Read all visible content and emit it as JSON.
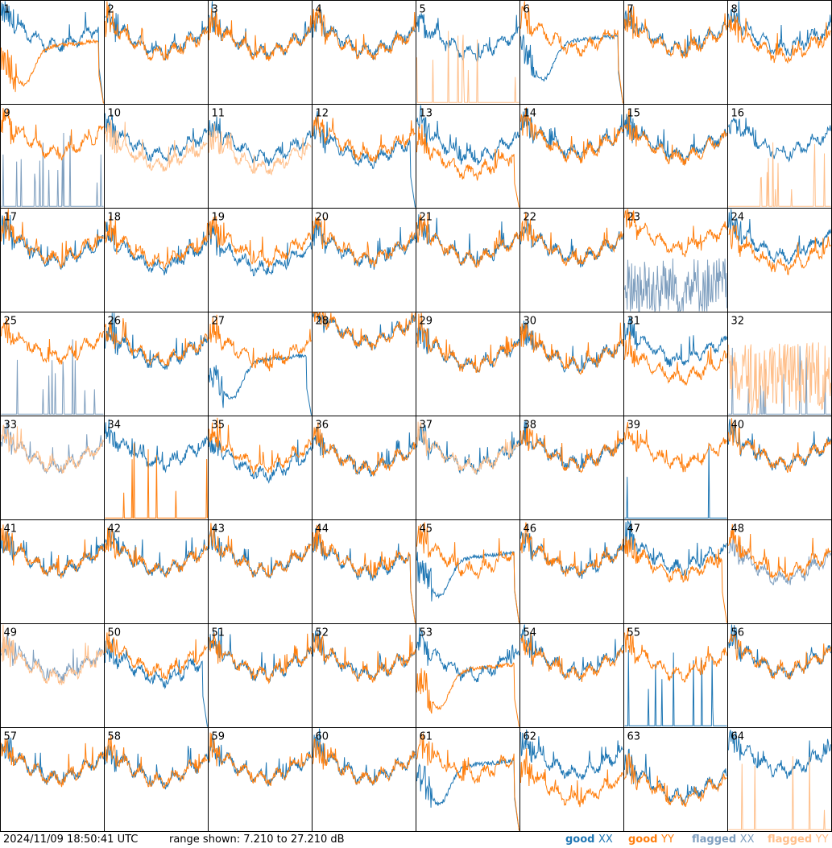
{
  "footer": {
    "timestamp": "2024/11/09 18:50:41 UTC",
    "range_text": "range shown: 7.210 to 27.210 dB"
  },
  "colors": {
    "good_xx": "#1f77b4",
    "good_yy": "#ff7f0e",
    "flagged_xx": "#7f9fbf",
    "flagged_yy": "#ffbf8a",
    "grid": "#000000"
  },
  "chart_data": {
    "type": "line",
    "title": "",
    "ylim": [
      7.21,
      27.21
    ],
    "grid": {
      "rows": 8,
      "cols": 8
    },
    "legend": {
      "placement": "bottom-right",
      "entries": [
        {
          "key": "good_xx",
          "prefix": "good ",
          "suffix": "XX"
        },
        {
          "key": "good_yy",
          "prefix": "good ",
          "suffix": "YY"
        },
        {
          "key": "flagged_xx",
          "prefix": "flagged ",
          "suffix": "XX"
        },
        {
          "key": "flagged_yy",
          "prefix": "flagged ",
          "suffix": "YY"
        }
      ]
    },
    "panels": [
      {
        "id": "1",
        "xx": "good",
        "yy": "good",
        "xx_shape": "ripple",
        "yy_shape": "bowl",
        "xx_level": 20.5,
        "yy_level": 17.5,
        "xx_drop": true,
        "yy_drop": true
      },
      {
        "id": "2",
        "xx": "good",
        "yy": "good",
        "xx_shape": "ripple",
        "yy_shape": "ripple",
        "xx_level": 19.5,
        "yy_level": 19.0
      },
      {
        "id": "3",
        "xx": "good",
        "yy": "good",
        "xx_shape": "ripple",
        "yy_shape": "ripple",
        "xx_level": 19.2,
        "yy_level": 19.0
      },
      {
        "id": "4",
        "xx": "good",
        "yy": "good",
        "xx_shape": "ripple",
        "yy_shape": "ripple",
        "xx_level": 19.5,
        "yy_level": 19.0
      },
      {
        "id": "5",
        "xx": "good",
        "yy": "flagged",
        "xx_shape": "ripple",
        "yy_shape": "spikes",
        "xx_level": 19.0,
        "yy_level": 7.4
      },
      {
        "id": "6",
        "xx": "good",
        "yy": "good",
        "xx_shape": "bowl",
        "yy_shape": "ripple",
        "xx_level": 18.5,
        "yy_level": 20.0,
        "xx_drop": true,
        "yy_drop": true
      },
      {
        "id": "7",
        "xx": "good",
        "yy": "good",
        "xx_shape": "ripple",
        "yy_shape": "ripple",
        "xx_level": 20.0,
        "yy_level": 19.5
      },
      {
        "id": "8",
        "xx": "good",
        "yy": "good",
        "xx_shape": "ripple",
        "yy_shape": "ripple",
        "xx_level": 20.0,
        "yy_level": 18.5
      },
      {
        "id": "9",
        "xx": "flagged",
        "yy": "good",
        "xx_shape": "spikes",
        "yy_shape": "ripple",
        "xx_level": 7.4,
        "yy_level": 20.0
      },
      {
        "id": "10",
        "xx": "good",
        "yy": "flagged",
        "xx_shape": "ripple",
        "yy_shape": "ripple",
        "xx_level": 19.5,
        "yy_level": 17.5
      },
      {
        "id": "11",
        "xx": "good",
        "yy": "flagged",
        "xx_shape": "ripple",
        "yy_shape": "ripple",
        "xx_level": 19.0,
        "yy_level": 17.0
      },
      {
        "id": "12",
        "xx": "good",
        "yy": "good",
        "xx_shape": "ripple",
        "yy_shape": "ripple",
        "xx_level": 18.5,
        "yy_level": 19.5,
        "xx_drop": true
      },
      {
        "id": "13",
        "xx": "good",
        "yy": "good",
        "xx_shape": "ripple",
        "yy_shape": "ripple",
        "xx_level": 19.0,
        "yy_level": 16.0,
        "yy_drop": true
      },
      {
        "id": "14",
        "xx": "good",
        "yy": "good",
        "xx_shape": "ripple",
        "yy_shape": "ripple",
        "xx_level": 20.0,
        "yy_level": 19.5
      },
      {
        "id": "15",
        "xx": "good",
        "yy": "good",
        "xx_shape": "ripple",
        "yy_shape": "ripple",
        "xx_level": 19.5,
        "yy_level": 19.0
      },
      {
        "id": "16",
        "xx": "good",
        "yy": "flagged",
        "xx_shape": "ripple",
        "yy_shape": "spikes",
        "xx_level": 20.0,
        "yy_level": 7.4
      },
      {
        "id": "17",
        "xx": "good",
        "yy": "good",
        "xx_shape": "ripple",
        "yy_shape": "ripple",
        "xx_level": 19.0,
        "yy_level": 19.5
      },
      {
        "id": "18",
        "xx": "good",
        "yy": "good",
        "xx_shape": "ripple",
        "yy_shape": "ripple",
        "xx_level": 18.0,
        "yy_level": 19.0
      },
      {
        "id": "19",
        "xx": "good",
        "yy": "good",
        "xx_shape": "ripple",
        "yy_shape": "ripple",
        "xx_level": 17.5,
        "yy_level": 19.5
      },
      {
        "id": "20",
        "xx": "good",
        "yy": "good",
        "xx_shape": "ripple",
        "yy_shape": "ripple",
        "xx_level": 19.0,
        "yy_level": 19.5
      },
      {
        "id": "21",
        "xx": "good",
        "yy": "good",
        "xx_shape": "ripple",
        "yy_shape": "ripple",
        "xx_level": 19.5,
        "yy_level": 19.5
      },
      {
        "id": "22",
        "xx": "good",
        "yy": "good",
        "xx_shape": "ripple",
        "yy_shape": "ripple",
        "xx_level": 19.5,
        "yy_level": 19.5
      },
      {
        "id": "23",
        "xx": "flagged",
        "yy": "good",
        "xx_shape": "noisy",
        "yy_shape": "ripple",
        "xx_level": 12.0,
        "yy_level": 21.5
      },
      {
        "id": "24",
        "xx": "good",
        "yy": "good",
        "xx_shape": "ripple",
        "yy_shape": "ripple",
        "xx_level": 20.0,
        "yy_level": 18.0
      },
      {
        "id": "25",
        "xx": "flagged",
        "yy": "good",
        "xx_shape": "spikes",
        "yy_shape": "ripple",
        "xx_level": 7.4,
        "yy_level": 20.5
      },
      {
        "id": "26",
        "xx": "good",
        "yy": "good",
        "xx_shape": "ripple",
        "yy_shape": "ripple",
        "xx_level": 19.5,
        "yy_level": 20.0
      },
      {
        "id": "27",
        "xx": "good",
        "yy": "good",
        "xx_shape": "bowl",
        "yy_shape": "ripple",
        "xx_level": 17.0,
        "yy_level": 19.5,
        "xx_drop": true
      },
      {
        "id": "28",
        "xx": "good",
        "yy": "good",
        "xx_shape": "ripple",
        "yy_shape": "ripple",
        "xx_level": 23.5,
        "yy_level": 23.5
      },
      {
        "id": "29",
        "xx": "good",
        "yy": "good",
        "xx_shape": "ripple",
        "yy_shape": "ripple",
        "xx_level": 19.0,
        "yy_level": 19.0
      },
      {
        "id": "30",
        "xx": "good",
        "yy": "good",
        "xx_shape": "ripple",
        "yy_shape": "ripple",
        "xx_level": 19.0,
        "yy_level": 19.0
      },
      {
        "id": "31",
        "xx": "good",
        "yy": "good",
        "xx_shape": "ripple",
        "yy_shape": "ripple",
        "xx_level": 20.0,
        "yy_level": 16.5
      },
      {
        "id": "32",
        "xx": "flagged",
        "yy": "flagged",
        "xx_shape": "spikes",
        "yy_shape": "noisy",
        "xx_level": 7.4,
        "yy_level": 15.5
      },
      {
        "id": "33",
        "xx": "flagged",
        "yy": "flagged",
        "xx_shape": "ripple",
        "yy_shape": "ripple",
        "xx_level": 19.5,
        "yy_level": 19.5
      },
      {
        "id": "34",
        "xx": "good",
        "yy": "good",
        "xx_shape": "ripple",
        "yy_shape": "spikes",
        "xx_level": 20.0,
        "yy_level": 7.6
      },
      {
        "id": "35",
        "xx": "good",
        "yy": "good",
        "xx_shape": "ripple",
        "yy_shape": "ripple",
        "xx_level": 18.0,
        "yy_level": 19.5
      },
      {
        "id": "36",
        "xx": "good",
        "yy": "good",
        "xx_shape": "ripple",
        "yy_shape": "ripple",
        "xx_level": 19.0,
        "yy_level": 19.0
      },
      {
        "id": "37",
        "xx": "good",
        "yy": "flagged",
        "xx_shape": "ripple",
        "yy_shape": "ripple",
        "xx_level": 19.5,
        "yy_level": 19.5
      },
      {
        "id": "38",
        "xx": "good",
        "yy": "good",
        "xx_shape": "ripple",
        "yy_shape": "ripple",
        "xx_level": 20.0,
        "yy_level": 20.0
      },
      {
        "id": "39",
        "xx": "good",
        "yy": "good",
        "xx_shape": "spikes",
        "yy_shape": "ripple",
        "xx_level": 7.4,
        "yy_level": 20.0
      },
      {
        "id": "40",
        "xx": "good",
        "yy": "good",
        "xx_shape": "ripple",
        "yy_shape": "ripple",
        "xx_level": 20.0,
        "yy_level": 20.0
      },
      {
        "id": "41",
        "xx": "good",
        "yy": "good",
        "xx_shape": "ripple",
        "yy_shape": "ripple",
        "xx_level": 19.5,
        "yy_level": 19.5
      },
      {
        "id": "42",
        "xx": "good",
        "yy": "good",
        "xx_shape": "ripple",
        "yy_shape": "ripple",
        "xx_level": 19.5,
        "yy_level": 19.5
      },
      {
        "id": "43",
        "xx": "good",
        "yy": "good",
        "xx_shape": "ripple",
        "yy_shape": "ripple",
        "xx_level": 19.5,
        "yy_level": 19.5
      },
      {
        "id": "44",
        "xx": "good",
        "yy": "good",
        "xx_shape": "ripple",
        "yy_shape": "ripple",
        "xx_level": 19.0,
        "yy_level": 19.5,
        "xx_drop": true,
        "yy_drop": true
      },
      {
        "id": "45",
        "xx": "good",
        "yy": "good",
        "xx_shape": "bowl",
        "yy_shape": "ripple",
        "xx_level": 19.0,
        "yy_level": 19.5,
        "xx_drop": true,
        "yy_drop": true
      },
      {
        "id": "46",
        "xx": "good",
        "yy": "good",
        "xx_shape": "ripple",
        "yy_shape": "ripple",
        "xx_level": 19.5,
        "yy_level": 19.5
      },
      {
        "id": "47",
        "xx": "good",
        "yy": "good",
        "xx_shape": "ripple",
        "yy_shape": "ripple",
        "xx_level": 20.0,
        "yy_level": 18.5,
        "yy_drop": true
      },
      {
        "id": "48",
        "xx": "flagged",
        "yy": "good",
        "xx_shape": "ripple",
        "yy_shape": "ripple",
        "xx_level": 18.0,
        "yy_level": 19.0
      },
      {
        "id": "49",
        "xx": "flagged",
        "yy": "flagged",
        "xx_shape": "ripple",
        "yy_shape": "ripple",
        "xx_level": 19.5,
        "yy_level": 19.0
      },
      {
        "id": "50",
        "xx": "good",
        "yy": "good",
        "xx_shape": "ripple",
        "yy_shape": "ripple",
        "xx_level": 18.5,
        "yy_level": 20.0,
        "xx_drop": true
      },
      {
        "id": "51",
        "xx": "good",
        "yy": "good",
        "xx_shape": "ripple",
        "yy_shape": "ripple",
        "xx_level": 19.5,
        "yy_level": 19.5
      },
      {
        "id": "52",
        "xx": "good",
        "yy": "good",
        "xx_shape": "ripple",
        "yy_shape": "ripple",
        "xx_level": 19.5,
        "yy_level": 19.5
      },
      {
        "id": "53",
        "xx": "good",
        "yy": "good",
        "xx_shape": "ripple",
        "yy_shape": "bowl",
        "xx_level": 19.5,
        "yy_level": 17.5,
        "yy_drop": true
      },
      {
        "id": "54",
        "xx": "good",
        "yy": "good",
        "xx_shape": "ripple",
        "yy_shape": "ripple",
        "xx_level": 20.0,
        "yy_level": 19.5
      },
      {
        "id": "55",
        "xx": "good",
        "yy": "good",
        "xx_shape": "spikes",
        "yy_shape": "ripple",
        "xx_level": 7.6,
        "yy_level": 19.5
      },
      {
        "id": "56",
        "xx": "good",
        "yy": "good",
        "xx_shape": "ripple",
        "yy_shape": "ripple",
        "xx_level": 20.0,
        "yy_level": 20.0
      },
      {
        "id": "57",
        "xx": "good",
        "yy": "good",
        "xx_shape": "ripple",
        "yy_shape": "ripple",
        "xx_level": 19.5,
        "yy_level": 19.5
      },
      {
        "id": "58",
        "xx": "good",
        "yy": "good",
        "xx_shape": "ripple",
        "yy_shape": "ripple",
        "xx_level": 19.0,
        "yy_level": 19.0
      },
      {
        "id": "59",
        "xx": "good",
        "yy": "good",
        "xx_shape": "ripple",
        "yy_shape": "ripple",
        "xx_level": 19.5,
        "yy_level": 19.5
      },
      {
        "id": "60",
        "xx": "good",
        "yy": "good",
        "xx_shape": "ripple",
        "yy_shape": "ripple",
        "xx_level": 19.5,
        "yy_level": 19.5
      },
      {
        "id": "61",
        "xx": "good",
        "yy": "good",
        "xx_shape": "bowl",
        "yy_shape": "ripple",
        "xx_level": 19.0,
        "yy_level": 20.0,
        "xx_drop": true,
        "yy_drop": true
      },
      {
        "id": "62",
        "xx": "good",
        "yy": "good",
        "xx_shape": "ripple",
        "yy_shape": "ripple",
        "xx_level": 20.5,
        "yy_level": 15.5
      },
      {
        "id": "63",
        "xx": "good",
        "yy": "good",
        "xx_shape": "ripple",
        "yy_shape": "ripple",
        "xx_level": 16.0,
        "yy_level": 15.5
      },
      {
        "id": "64",
        "xx": "good",
        "yy": "flagged",
        "xx_shape": "ripple",
        "yy_shape": "spikes",
        "xx_level": 21.0,
        "yy_level": 7.4
      }
    ]
  }
}
